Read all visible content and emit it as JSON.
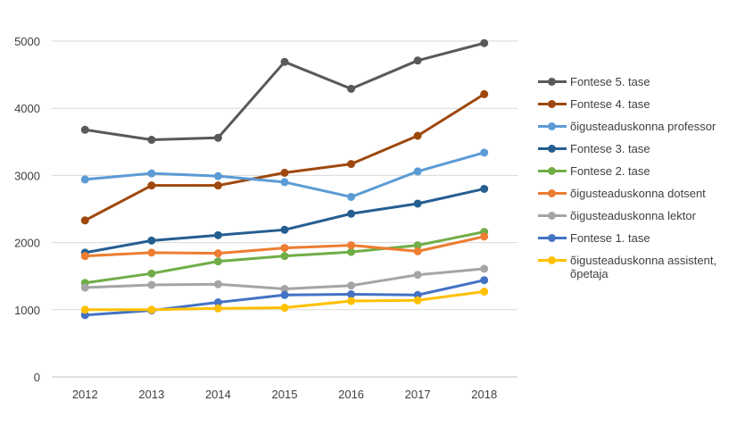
{
  "chart_data": {
    "type": "line",
    "title": "",
    "xlabel": "",
    "ylabel": "",
    "x": [
      "2012",
      "2013",
      "2014",
      "2015",
      "2016",
      "2017",
      "2018"
    ],
    "ylim": [
      0,
      5000
    ],
    "yticks": [
      "0",
      "1000",
      "2000",
      "3000",
      "4000",
      "5000"
    ],
    "grid": "horizontal",
    "legend_position": "right",
    "series": [
      {
        "name": "Fontese 5. tase",
        "color": "#595959",
        "values": [
          3680,
          3530,
          3560,
          4690,
          4290,
          4710,
          4970
        ]
      },
      {
        "name": "Fontese 4. tase",
        "color": "#9e480e",
        "values": [
          2330,
          2850,
          2850,
          3040,
          3170,
          3590,
          4210
        ]
      },
      {
        "name": "õigusteaduskonna professor",
        "color": "#5b9bd5",
        "values": [
          2940,
          3030,
          2990,
          2900,
          2680,
          3060,
          3340
        ]
      },
      {
        "name": "Fontese 3. tase",
        "color": "#255e91",
        "values": [
          1850,
          2030,
          2110,
          2190,
          2430,
          2580,
          2800
        ]
      },
      {
        "name": "Fontese 2. tase",
        "color": "#70ad47",
        "values": [
          1400,
          1540,
          1720,
          1800,
          1860,
          1960,
          2160
        ]
      },
      {
        "name": "õigusteaduskonna  dotsent",
        "color": "#ed7d31",
        "values": [
          1800,
          1850,
          1840,
          1920,
          1960,
          1870,
          2090
        ]
      },
      {
        "name": "õigusteaduskonna  lektor",
        "color": "#a5a5a5",
        "values": [
          1330,
          1370,
          1380,
          1310,
          1360,
          1520,
          1610
        ]
      },
      {
        "name": "Fontese 1. tase",
        "color": "#4472c4",
        "values": [
          920,
          990,
          1110,
          1220,
          1230,
          1220,
          1440
        ]
      },
      {
        "name": "õigusteaduskonna assistent, õpetaja",
        "color": "#ffc000",
        "values": [
          1000,
          1000,
          1020,
          1030,
          1130,
          1140,
          1270
        ]
      }
    ]
  }
}
